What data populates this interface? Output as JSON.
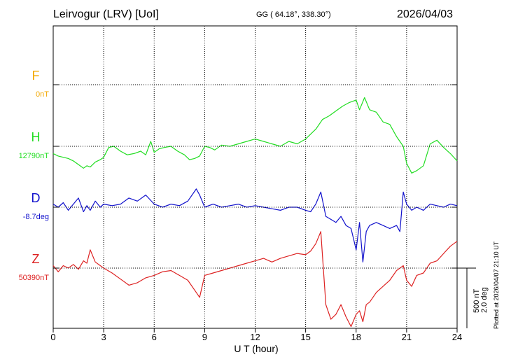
{
  "header": {
    "station": "Leirvogur (LRV)  [UoI]",
    "coords": "GG ( 64.18°, 338.30°)",
    "date": "2026/04/03"
  },
  "plotted_note": "Plotted at 2026/04/07 21:10 UT",
  "chart_data": {
    "type": "line",
    "xlabel": "U T (hour)",
    "xlim": [
      0,
      24
    ],
    "x_ticks": [
      "0",
      "3",
      "6",
      "9",
      "12",
      "15",
      "18",
      "21",
      "24"
    ],
    "grid": true,
    "scale_bar": {
      "line1": "500 nT",
      "line2": "2.0 deg"
    },
    "series": [
      {
        "name": "F",
        "baseline": "0nT",
        "color": "#f2a800",
        "x": [],
        "y": []
      },
      {
        "name": "H",
        "baseline": "12790nT",
        "color": "#22dd22",
        "x": [
          0,
          0.3,
          0.6,
          0.9,
          1.2,
          1.5,
          1.8,
          2.0,
          2.2,
          2.5,
          2.8,
          3.0,
          3.3,
          3.6,
          4.0,
          4.4,
          4.8,
          5.2,
          5.5,
          5.8,
          6.0,
          6.3,
          6.6,
          7.0,
          7.4,
          7.8,
          8.1,
          8.4,
          8.7,
          9.0,
          9.3,
          9.6,
          10.0,
          10.5,
          11.0,
          11.5,
          12.0,
          12.5,
          13.0,
          13.5,
          14.0,
          14.5,
          15.0,
          15.3,
          15.6,
          16.0,
          16.4,
          16.8,
          17.2,
          17.6,
          18.0,
          18.2,
          18.5,
          18.8,
          19.2,
          19.6,
          20.0,
          20.4,
          20.8,
          21.0,
          21.3,
          21.6,
          22.0,
          22.4,
          22.8,
          23.2,
          23.6,
          24.0
        ],
        "y": [
          -60,
          -80,
          -90,
          -100,
          -120,
          -150,
          -180,
          -160,
          -170,
          -130,
          -110,
          -90,
          -10,
          0,
          -40,
          -70,
          -60,
          -40,
          -70,
          40,
          -50,
          -20,
          -10,
          0,
          -40,
          -70,
          -110,
          -100,
          -80,
          0,
          -10,
          -30,
          10,
          0,
          20,
          40,
          60,
          40,
          20,
          0,
          40,
          20,
          60,
          100,
          140,
          220,
          250,
          290,
          330,
          360,
          380,
          300,
          400,
          300,
          280,
          200,
          180,
          80,
          0,
          -140,
          -220,
          -200,
          -160,
          20,
          50,
          -10,
          -60,
          -120
        ]
      },
      {
        "name": "D",
        "baseline": "-8.7deg",
        "color": "#1111cc",
        "x": [
          0,
          0.3,
          0.6,
          0.9,
          1.2,
          1.5,
          1.8,
          2.0,
          2.2,
          2.5,
          2.8,
          3.0,
          3.5,
          4.0,
          4.5,
          5.0,
          5.5,
          6.0,
          6.5,
          7.0,
          7.5,
          8.0,
          8.5,
          8.7,
          9.0,
          9.5,
          10.0,
          10.5,
          11.0,
          11.5,
          12.0,
          12.5,
          13.0,
          13.5,
          14.0,
          14.5,
          15.0,
          15.3,
          15.6,
          15.9,
          16.2,
          16.5,
          16.8,
          17.1,
          17.4,
          17.7,
          18.0,
          18.2,
          18.4,
          18.6,
          18.8,
          19.2,
          19.6,
          20.0,
          20.4,
          20.6,
          20.8,
          21.0,
          21.3,
          21.6,
          22.0,
          22.4,
          22.8,
          23.2,
          23.6,
          24.0
        ],
        "y": [
          0.1,
          0.0,
          0.15,
          -0.1,
          0.1,
          0.3,
          -0.15,
          0.05,
          -0.1,
          0.2,
          0.0,
          0.1,
          0.05,
          0.1,
          0.3,
          0.2,
          0.4,
          0.1,
          0.0,
          0.1,
          0.05,
          0.2,
          0.6,
          0.4,
          0.0,
          0.1,
          0.0,
          0.05,
          0.1,
          0.0,
          0.05,
          0.0,
          -0.05,
          -0.1,
          0.0,
          0.0,
          -0.1,
          -0.15,
          0.1,
          0.5,
          -0.3,
          -0.4,
          -0.5,
          -0.3,
          -0.6,
          -0.7,
          -1.4,
          -0.5,
          -1.8,
          -0.8,
          -0.6,
          -0.5,
          -0.6,
          -0.7,
          -0.6,
          -0.8,
          0.5,
          0.1,
          -0.1,
          0.0,
          -0.1,
          0.1,
          0.05,
          0.0,
          0.1,
          0.05
        ]
      },
      {
        "name": "Z",
        "baseline": "50390nT",
        "color": "#dd2222",
        "x": [
          0,
          0.3,
          0.6,
          0.9,
          1.2,
          1.5,
          1.8,
          2.0,
          2.2,
          2.5,
          2.8,
          3.0,
          3.5,
          4.0,
          4.5,
          5.0,
          5.5,
          6.0,
          6.5,
          7.0,
          7.5,
          8.0,
          8.5,
          8.7,
          9.0,
          9.5,
          10.0,
          10.5,
          11.0,
          11.5,
          12.0,
          12.5,
          13.0,
          13.5,
          14.0,
          14.5,
          15.0,
          15.3,
          15.6,
          15.9,
          16.2,
          16.5,
          16.8,
          17.1,
          17.4,
          17.7,
          18.0,
          18.2,
          18.4,
          18.6,
          18.8,
          19.2,
          19.6,
          20.0,
          20.4,
          20.8,
          21.0,
          21.3,
          21.6,
          22.0,
          22.4,
          22.8,
          23.2,
          23.6,
          24.0
        ],
        "y": [
          20,
          -30,
          20,
          0,
          30,
          -10,
          60,
          40,
          150,
          50,
          20,
          0,
          -40,
          -90,
          -140,
          -120,
          -80,
          -60,
          -30,
          -20,
          -60,
          -100,
          -200,
          -240,
          -60,
          -40,
          -20,
          0,
          20,
          40,
          60,
          80,
          50,
          80,
          100,
          120,
          110,
          140,
          200,
          300,
          -300,
          -420,
          -380,
          -300,
          -400,
          -480,
          -380,
          -350,
          -440,
          -300,
          -280,
          -200,
          -150,
          -100,
          -20,
          20,
          -100,
          -150,
          -60,
          -40,
          40,
          60,
          120,
          180,
          220
        ]
      }
    ]
  }
}
